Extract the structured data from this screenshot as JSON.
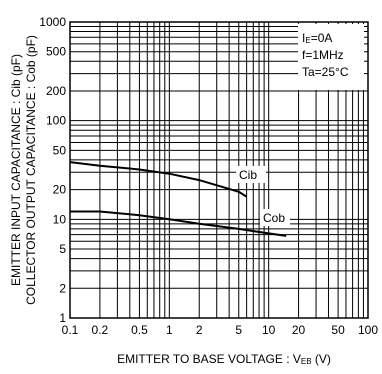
{
  "chart_data": {
    "type": "line",
    "xscale": "log",
    "yscale": "log",
    "xlim": [
      0.1,
      100
    ],
    "ylim": [
      1,
      1000
    ],
    "grid": true,
    "xlabel": "EMITTER TO BASE VOLTAGE : V",
    "xlabel_sub": "EB",
    "xlabel_unit": " (V)",
    "ylabel": "EMITTER INPUT CAPACITANCE : Cib (pF)",
    "ylabel2": "COLLECTOR OUTPUT CAPACITANCE : Cob (pF)",
    "x_ticks": [
      {
        "v": 0.1,
        "label": "0.1"
      },
      {
        "v": 0.2,
        "label": "0.2"
      },
      {
        "v": 0.5,
        "label": "0.5"
      },
      {
        "v": 1,
        "label": "1"
      },
      {
        "v": 2,
        "label": "2"
      },
      {
        "v": 5,
        "label": "5"
      },
      {
        "v": 10,
        "label": "10"
      },
      {
        "v": 20,
        "label": "20"
      },
      {
        "v": 50,
        "label": "50"
      },
      {
        "v": 100,
        "label": "100"
      }
    ],
    "y_ticks": [
      {
        "v": 1,
        "label": "1"
      },
      {
        "v": 2,
        "label": "2"
      },
      {
        "v": 5,
        "label": "5"
      },
      {
        "v": 10,
        "label": "10"
      },
      {
        "v": 20,
        "label": "20"
      },
      {
        "v": 50,
        "label": "50"
      },
      {
        "v": 100,
        "label": "100"
      },
      {
        "v": 200,
        "label": "200"
      },
      {
        "v": 500,
        "label": "500"
      },
      {
        "v": 1000,
        "label": "1000"
      }
    ],
    "series": [
      {
        "name": "Cib",
        "x": [
          0.1,
          0.2,
          0.5,
          1,
          2,
          5,
          6
        ],
        "y": [
          38,
          35,
          32,
          29,
          25,
          19,
          17
        ]
      },
      {
        "name": "Cob",
        "x": [
          0.1,
          0.2,
          0.5,
          1,
          2,
          5,
          10,
          15
        ],
        "y": [
          12,
          12,
          11,
          10,
          9,
          8,
          7.2,
          6.8
        ]
      }
    ],
    "conditions": [
      {
        "main": "I",
        "sub": "E",
        "rest": "=0A"
      },
      {
        "main": "f=1MHz",
        "sub": "",
        "rest": ""
      },
      {
        "main": "Ta=25°C",
        "sub": "",
        "rest": ""
      }
    ]
  }
}
